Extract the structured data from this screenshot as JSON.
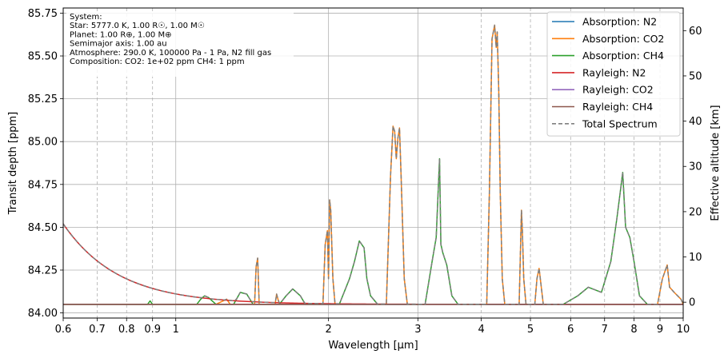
{
  "chart_data": {
    "type": "line",
    "title": "",
    "xlabel": "Wavelength [µm]",
    "ylabel": "Transit depth [ppm]",
    "ylabel_right": "Effective altitude [km]",
    "x_scale": "log",
    "xlim": [
      0.6,
      10
    ],
    "ylim": [
      83.97,
      85.78
    ],
    "ylim_right": [
      -3.5,
      65
    ],
    "x_ticks": [
      0.6,
      0.7,
      0.8,
      0.9,
      1,
      2,
      3,
      4,
      5,
      6,
      7,
      8,
      9,
      10
    ],
    "x_tick_labels": [
      "0.6",
      "0.7",
      "0.8",
      "0.9",
      "1",
      "2",
      "3",
      "4",
      "5",
      "6",
      "7",
      "8",
      "9",
      "10"
    ],
    "y_ticks": [
      84.0,
      84.25,
      84.5,
      84.75,
      85.0,
      85.25,
      85.5,
      85.75
    ],
    "y_tick_labels": [
      "84.00",
      "84.25",
      "84.50",
      "84.75",
      "85.00",
      "85.25",
      "85.50",
      "85.75"
    ],
    "y_ticks_right": [
      0,
      10,
      20,
      30,
      40,
      50,
      60
    ],
    "y_tick_labels_right": [
      "0",
      "10",
      "20",
      "30",
      "40",
      "50",
      "60"
    ],
    "grid": true,
    "legend_position": "top-right",
    "annotation_lines": [
      "System:",
      " Star: 5777.0 K, 1.00 R☉, 1.00 M☉",
      " Planet: 1.00 R⊕, 1.00 M⊕",
      "Semimajor axis: 1.00 au",
      "Atmosphere: 290.0 K, 100000 Pa - 1 Pa, N2 fill gas",
      "Composition: CO2: 1e+02 ppm CH4: 1 ppm"
    ],
    "baseline": 84.05,
    "series": [
      {
        "name": "Absorption: N2",
        "color": "#1f77b4",
        "style": "solid",
        "x": [
          0.6,
          10
        ],
        "y": [
          84.05,
          84.05
        ]
      },
      {
        "name": "Absorption: CO2",
        "color": "#ff7f0e",
        "style": "solid",
        "x": [
          0.6,
          1.2,
          1.26,
          1.28,
          1.3,
          1.43,
          1.44,
          1.45,
          1.46,
          1.57,
          1.58,
          1.6,
          1.62,
          1.95,
          1.97,
          1.99,
          2.0,
          2.01,
          2.02,
          2.04,
          2.06,
          2.6,
          2.65,
          2.68,
          2.7,
          2.72,
          2.74,
          2.76,
          2.78,
          2.82,
          2.86,
          4.1,
          4.15,
          4.2,
          4.25,
          4.28,
          4.3,
          4.33,
          4.36,
          4.4,
          4.45,
          4.75,
          4.8,
          4.82,
          4.85,
          4.9,
          5.1,
          5.15,
          5.2,
          5.3,
          8.9,
          9.1,
          9.3,
          9.4,
          9.6,
          9.9,
          10
        ],
        "y": [
          84.05,
          84.05,
          84.08,
          84.05,
          84.05,
          84.05,
          84.27,
          84.32,
          84.05,
          84.05,
          84.11,
          84.05,
          84.05,
          84.05,
          84.4,
          84.48,
          84.2,
          84.66,
          84.6,
          84.2,
          84.05,
          84.05,
          84.8,
          85.09,
          85.06,
          84.9,
          85.02,
          85.08,
          84.8,
          84.2,
          84.05,
          84.05,
          84.7,
          85.6,
          85.68,
          85.55,
          85.64,
          85.3,
          84.7,
          84.2,
          84.05,
          84.05,
          84.6,
          84.48,
          84.2,
          84.05,
          84.05,
          84.2,
          84.26,
          84.05,
          84.05,
          84.2,
          84.28,
          84.15,
          84.12,
          84.08,
          84.05
        ]
      },
      {
        "name": "Absorption: CH4",
        "color": "#2ca02c",
        "style": "solid",
        "x": [
          0.6,
          0.88,
          0.89,
          0.9,
          1.1,
          1.12,
          1.14,
          1.16,
          1.2,
          1.3,
          1.34,
          1.38,
          1.42,
          1.6,
          1.65,
          1.7,
          1.76,
          1.8,
          2.1,
          2.2,
          2.25,
          2.3,
          2.35,
          2.38,
          2.42,
          2.5,
          2.6,
          3.1,
          3.2,
          3.26,
          3.31,
          3.33,
          3.36,
          3.42,
          3.5,
          3.6,
          3.8,
          5.8,
          6.2,
          6.5,
          6.9,
          7.2,
          7.4,
          7.6,
          7.7,
          7.85,
          8.0,
          8.2,
          8.5,
          10
        ],
        "y": [
          84.05,
          84.05,
          84.07,
          84.05,
          84.05,
          84.08,
          84.1,
          84.09,
          84.05,
          84.05,
          84.12,
          84.11,
          84.05,
          84.05,
          84.1,
          84.14,
          84.1,
          84.05,
          84.05,
          84.2,
          84.3,
          84.42,
          84.38,
          84.2,
          84.1,
          84.05,
          84.05,
          84.05,
          84.3,
          84.44,
          84.9,
          84.4,
          84.35,
          84.28,
          84.1,
          84.05,
          84.05,
          84.05,
          84.1,
          84.15,
          84.12,
          84.3,
          84.55,
          84.82,
          84.5,
          84.44,
          84.3,
          84.1,
          84.05,
          84.05
        ]
      },
      {
        "name": "Rayleigh: N2",
        "color": "#d62728",
        "style": "solid",
        "rayleigh": true,
        "scale": 1.0
      },
      {
        "name": "Rayleigh: CO2",
        "color": "#9467bd",
        "style": "solid",
        "rayleigh": true,
        "scale": 0.0
      },
      {
        "name": "Rayleigh: CH4",
        "color": "#8c564b",
        "style": "solid",
        "rayleigh": true,
        "scale": 0.0
      },
      {
        "name": "Total Spectrum",
        "color": "#7f7f7f",
        "style": "dashed",
        "total": true
      }
    ]
  }
}
